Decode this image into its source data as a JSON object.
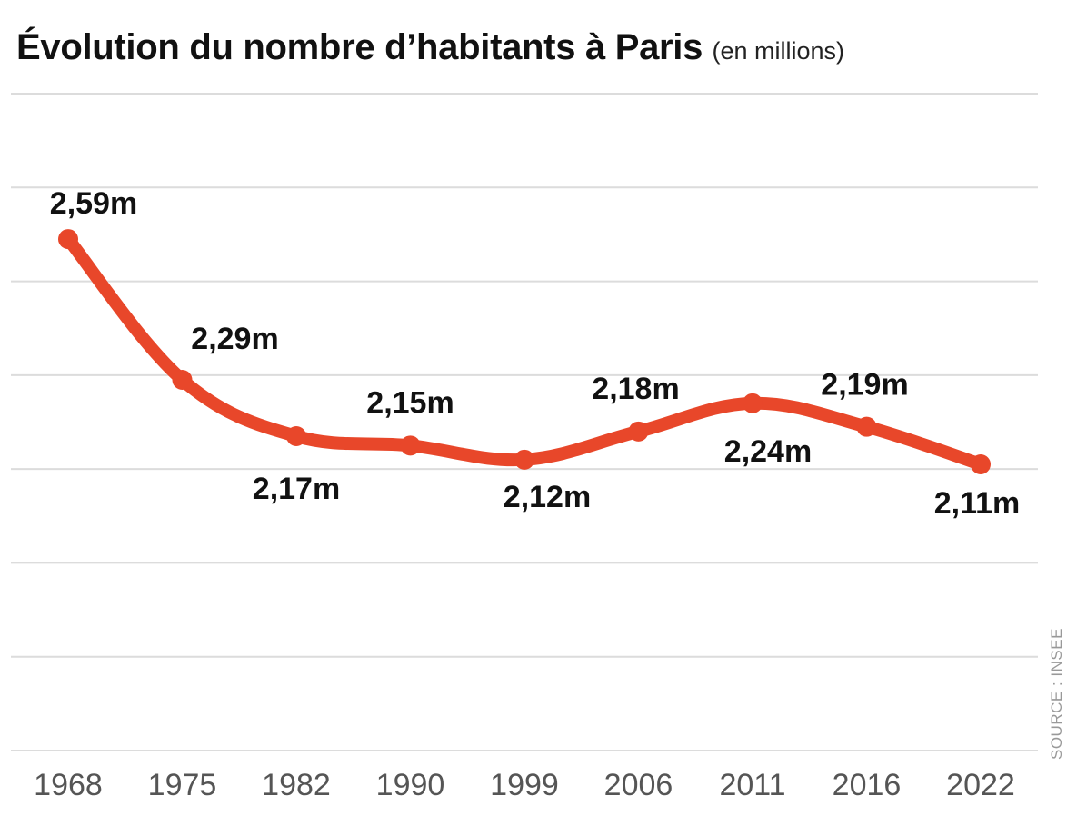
{
  "chart_data": {
    "type": "line",
    "title": "Évolution du nombre d’habitants à Paris",
    "subtitle": "(en millions)",
    "xlabel": "",
    "ylabel": "",
    "categories": [
      "1968",
      "1975",
      "1982",
      "1990",
      "1999",
      "2006",
      "2011",
      "2016",
      "2022"
    ],
    "values": [
      2.59,
      2.29,
      2.17,
      2.15,
      2.12,
      2.18,
      2.24,
      2.19,
      2.11
    ],
    "data_labels": [
      "2,59m",
      "2,29m",
      "2,17m",
      "2,15m",
      "2,12m",
      "2,18m",
      "2,24m",
      "2,19m",
      "2,11m"
    ],
    "ylim": [
      1.5,
      2.9
    ],
    "y_gridlines": [
      1.5,
      1.7,
      1.9,
      2.1,
      2.3,
      2.5,
      2.7,
      2.9
    ],
    "grid": true,
    "y_tick_labels_shown": false,
    "line_color": "#e8472a",
    "smooth": true,
    "source": "SOURCE : INSEE"
  }
}
